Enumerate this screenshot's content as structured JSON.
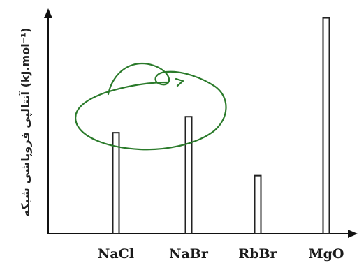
{
  "chart_data": {
    "type": "bar",
    "ylabel": "آنتالپی فروپاشی شبکه (kJ.mol⁻¹)",
    "categories": [
      "NaCl",
      "NaBr",
      "RbBr",
      "MgO"
    ],
    "values": [
      695,
      805,
      400,
      1485
    ],
    "ylim": [
      0,
      1550
    ],
    "grid": false,
    "colors": {
      "bar_stroke": "#222222",
      "bar_fill": "#ffffff",
      "axis": "#111111",
      "annotation": "#2a7a2a"
    }
  }
}
